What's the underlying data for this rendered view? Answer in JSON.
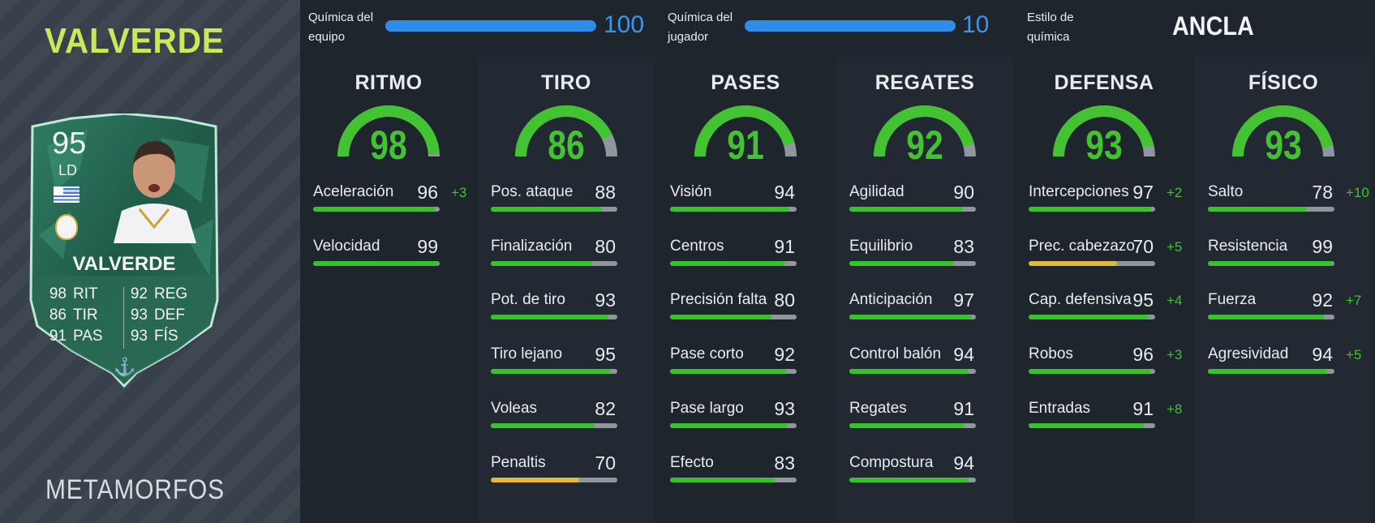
{
  "player": {
    "name": "VALVERDE",
    "promo": "METAMORFOS",
    "card": {
      "rating": "95",
      "position": "LD",
      "name": "VALVERDE",
      "stats": [
        {
          "value": "98",
          "label": "RIT"
        },
        {
          "value": "92",
          "label": "REG"
        },
        {
          "value": "86",
          "label": "TIR"
        },
        {
          "value": "93",
          "label": "DEF"
        },
        {
          "value": "91",
          "label": "PAS"
        },
        {
          "value": "93",
          "label": "FÍS"
        }
      ],
      "chem_style_icon": "anchor-icon"
    }
  },
  "chemistry": {
    "team": {
      "label_line1": "Química del",
      "label_line2": "equipo",
      "value": "100",
      "fraction": 1.0
    },
    "player": {
      "label_line1": "Química del",
      "label_line2": "jugador",
      "value": "10",
      "fraction": 1.0
    },
    "style": {
      "label_line1": "Estilo de",
      "label_line2": "química",
      "value": "ANCLA"
    }
  },
  "colors": {
    "accent_green": "#43c232",
    "chem_blue": "#2f8ae8",
    "name_lime": "#c9ea58",
    "warn_yellow": "#e6b63a"
  },
  "categories": [
    {
      "title": "RITMO",
      "value": "98",
      "stats": [
        {
          "name": "Aceleración",
          "value": "96",
          "bonus": "+3"
        },
        {
          "name": "Velocidad",
          "value": "99",
          "bonus": ""
        }
      ]
    },
    {
      "title": "TIRO",
      "value": "86",
      "stats": [
        {
          "name": "Pos. ataque",
          "value": "88",
          "bonus": ""
        },
        {
          "name": "Finalización",
          "value": "80",
          "bonus": ""
        },
        {
          "name": "Pot. de tiro",
          "value": "93",
          "bonus": ""
        },
        {
          "name": "Tiro lejano",
          "value": "95",
          "bonus": ""
        },
        {
          "name": "Voleas",
          "value": "82",
          "bonus": ""
        },
        {
          "name": "Penaltis",
          "value": "70",
          "bonus": ""
        }
      ]
    },
    {
      "title": "PASES",
      "value": "91",
      "stats": [
        {
          "name": "Visión",
          "value": "94",
          "bonus": ""
        },
        {
          "name": "Centros",
          "value": "91",
          "bonus": ""
        },
        {
          "name": "Precisión falta",
          "value": "80",
          "bonus": ""
        },
        {
          "name": "Pase corto",
          "value": "92",
          "bonus": ""
        },
        {
          "name": "Pase largo",
          "value": "93",
          "bonus": ""
        },
        {
          "name": "Efecto",
          "value": "83",
          "bonus": ""
        }
      ]
    },
    {
      "title": "REGATES",
      "value": "92",
      "stats": [
        {
          "name": "Agilidad",
          "value": "90",
          "bonus": ""
        },
        {
          "name": "Equilibrio",
          "value": "83",
          "bonus": ""
        },
        {
          "name": "Anticipación",
          "value": "97",
          "bonus": ""
        },
        {
          "name": "Control balón",
          "value": "94",
          "bonus": ""
        },
        {
          "name": "Regates",
          "value": "91",
          "bonus": ""
        },
        {
          "name": "Compostura",
          "value": "94",
          "bonus": ""
        }
      ]
    },
    {
      "title": "DEFENSA",
      "value": "93",
      "stats": [
        {
          "name": "Intercepciones",
          "value": "97",
          "bonus": "+2"
        },
        {
          "name": "Prec. cabezazo",
          "value": "70",
          "bonus": "+5"
        },
        {
          "name": "Cap. defensiva",
          "value": "95",
          "bonus": "+4"
        },
        {
          "name": "Robos",
          "value": "96",
          "bonus": "+3"
        },
        {
          "name": "Entradas",
          "value": "91",
          "bonus": "+8"
        }
      ]
    },
    {
      "title": "FÍSICO",
      "value": "93",
      "stats": [
        {
          "name": "Salto",
          "value": "78",
          "bonus": "+10"
        },
        {
          "name": "Resistencia",
          "value": "99",
          "bonus": ""
        },
        {
          "name": "Fuerza",
          "value": "92",
          "bonus": "+7"
        },
        {
          "name": "Agresividad",
          "value": "94",
          "bonus": "+5"
        }
      ]
    }
  ]
}
